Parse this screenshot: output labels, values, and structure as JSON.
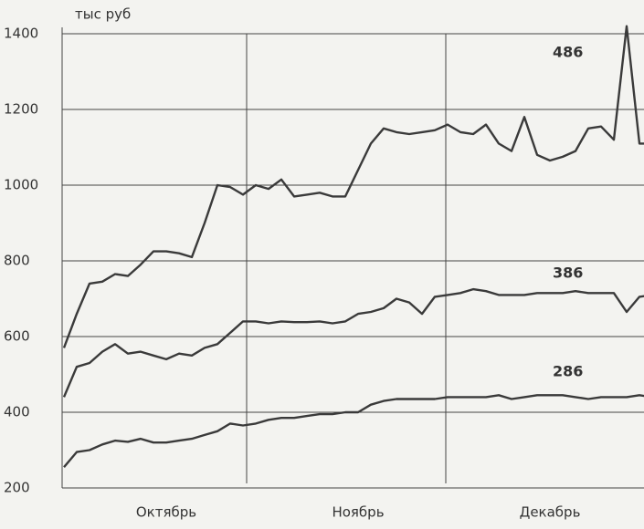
{
  "chart_data": {
    "type": "line",
    "y_label": "тыс руб",
    "categories": [
      null,
      null,
      null,
      null,
      null,
      null,
      null,
      null,
      "Октябрь",
      null,
      null,
      null,
      null,
      null,
      null,
      null,
      null,
      null,
      null,
      null,
      null,
      null,
      null,
      "Ноябрь",
      null,
      null,
      null,
      null,
      null,
      null,
      null,
      null,
      null,
      null,
      null,
      null,
      null,
      null,
      "Декабрь",
      null,
      null,
      null,
      null,
      null,
      null,
      null,
      null
    ],
    "series": [
      {
        "name": "486",
        "color": "#3a3a3a",
        "values": [
          570,
          660,
          740,
          745,
          765,
          760,
          790,
          825,
          825,
          820,
          810,
          900,
          1000,
          995,
          975,
          1000,
          990,
          1015,
          970,
          975,
          980,
          970,
          970,
          1040,
          1110,
          1150,
          1140,
          1135,
          1140,
          1145,
          1160,
          1140,
          1135,
          1160,
          1110,
          1090,
          1180,
          1080,
          1065,
          1075,
          1090,
          1150,
          1155,
          1120,
          1420,
          1110,
          1110
        ]
      },
      {
        "name": "386",
        "color": "#3a3a3a",
        "values": [
          440,
          520,
          530,
          560,
          580,
          555,
          560,
          550,
          540,
          555,
          550,
          570,
          580,
          610,
          640,
          640,
          635,
          640,
          638,
          638,
          640,
          635,
          640,
          660,
          665,
          675,
          700,
          690,
          660,
          705,
          710,
          715,
          725,
          720,
          710,
          710,
          710,
          715,
          715,
          715,
          720,
          715,
          715,
          715,
          665,
          705,
          710
        ]
      },
      {
        "name": "286",
        "color": "#3a3a3a",
        "values": [
          255,
          295,
          300,
          315,
          325,
          322,
          330,
          320,
          320,
          325,
          330,
          340,
          350,
          370,
          365,
          370,
          380,
          385,
          385,
          390,
          395,
          395,
          400,
          400,
          420,
          430,
          435,
          435,
          435,
          435,
          440,
          440,
          440,
          440,
          445,
          435,
          440,
          445,
          445,
          445,
          440,
          435,
          440,
          440,
          440,
          445,
          440
        ]
      }
    ],
    "ylim": [
      200,
      1400
    ],
    "yticks": [
      200,
      400,
      600,
      800,
      1000,
      1200,
      1400
    ],
    "grid": true
  }
}
